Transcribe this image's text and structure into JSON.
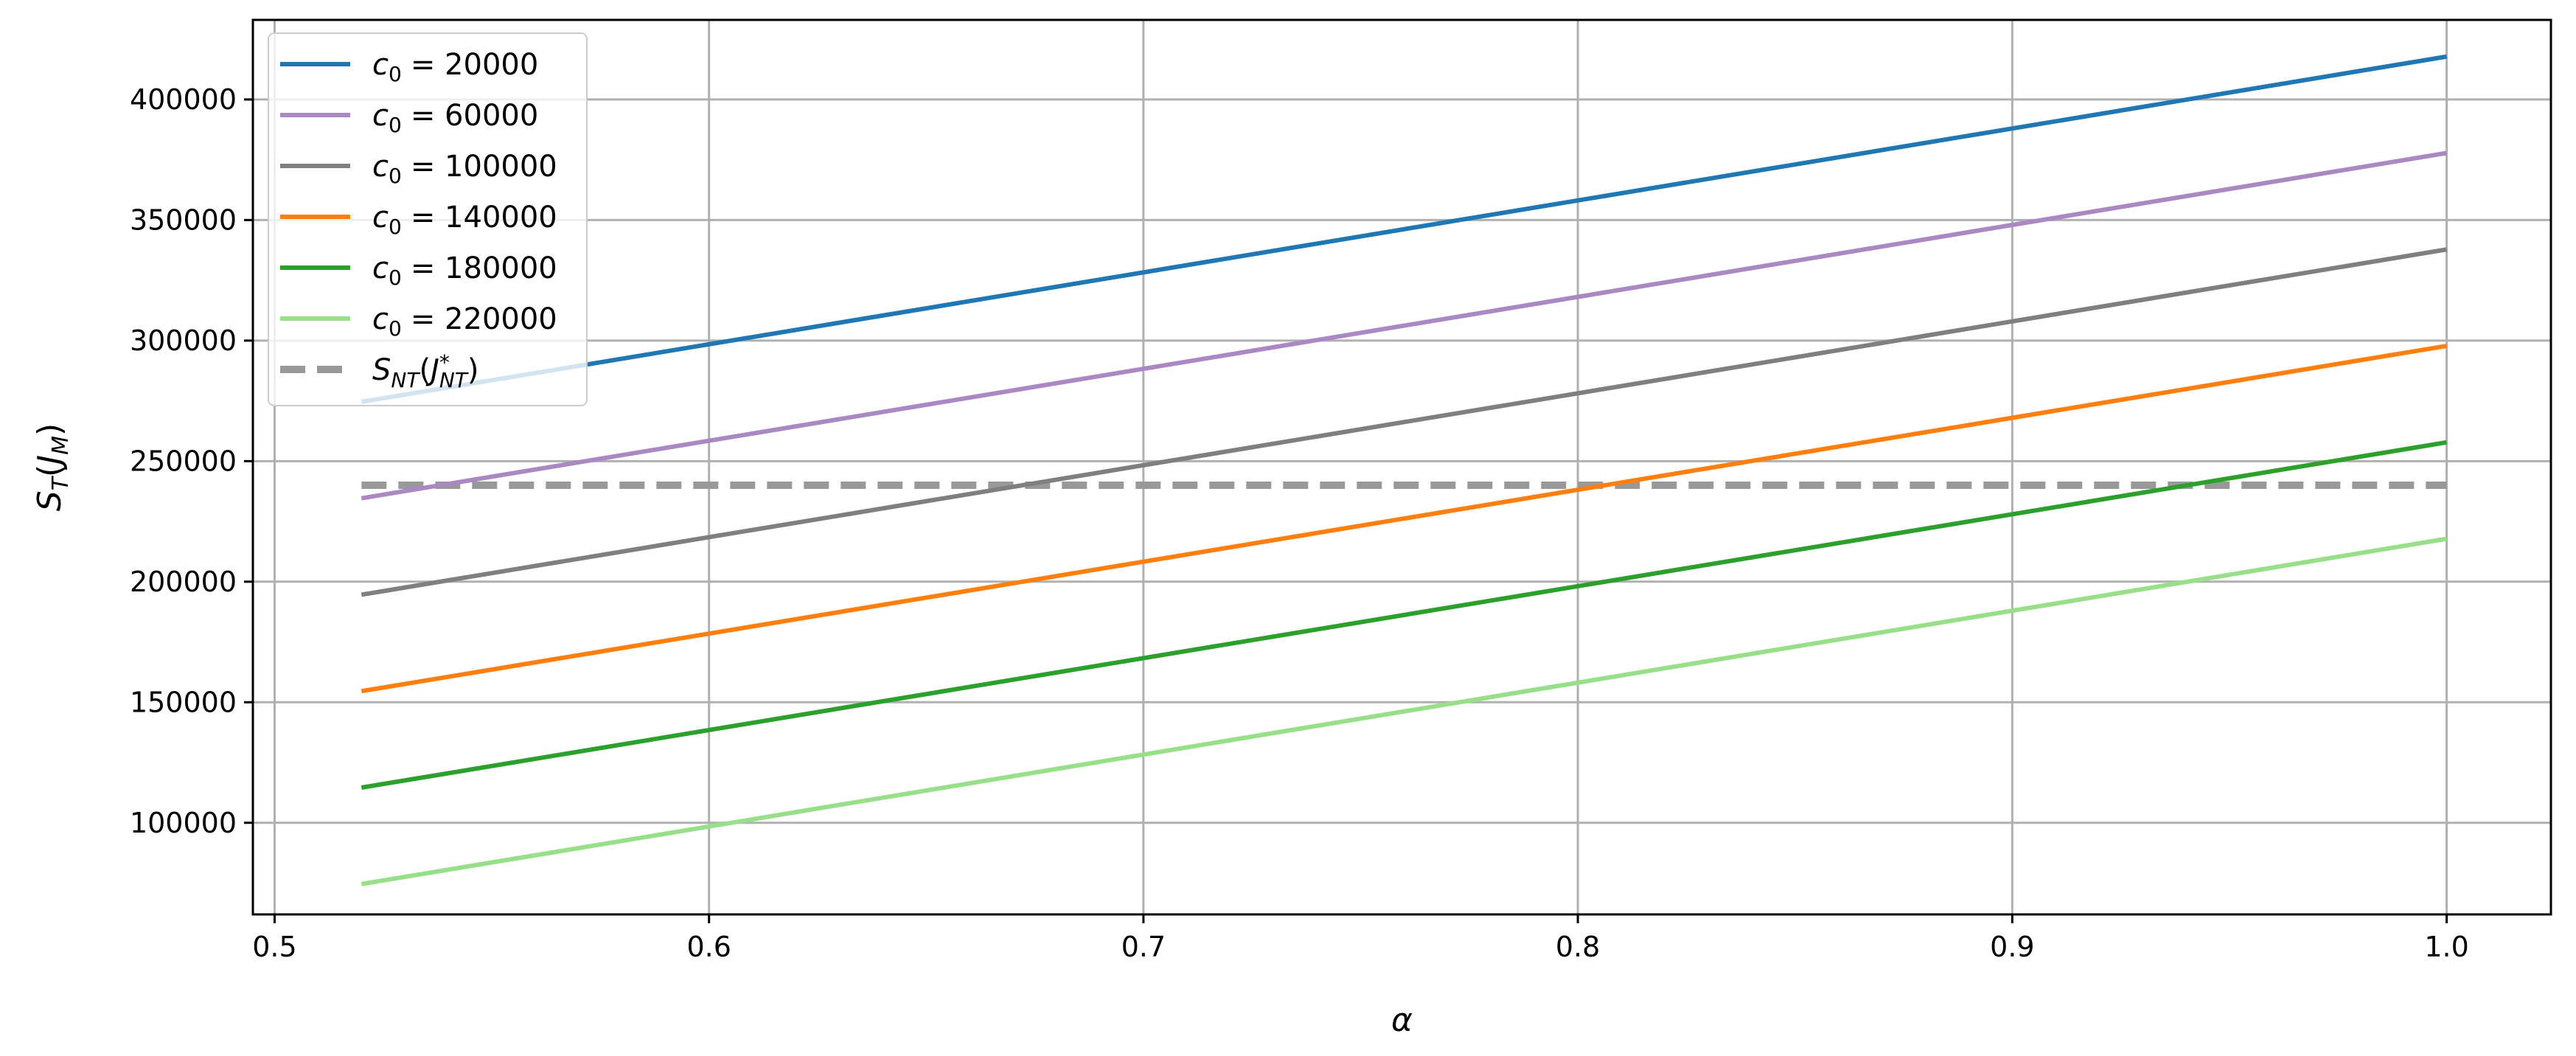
{
  "chart_data": {
    "type": "line",
    "title": "",
    "xlabel": "α",
    "ylabel": "S_T(J_M)",
    "xlim": [
      0.495,
      1.024
    ],
    "ylim": [
      62000,
      433000
    ],
    "xticks": [
      0.5,
      0.6,
      0.7,
      0.8,
      0.9,
      1.0
    ],
    "xtick_labels": [
      "0.5",
      "0.6",
      "0.7",
      "0.8",
      "0.9",
      "1.0"
    ],
    "yticks": [
      100000,
      150000,
      200000,
      250000,
      300000,
      350000,
      400000
    ],
    "ytick_labels": [
      "100000",
      "150000",
      "200000",
      "250000",
      "300000",
      "350000",
      "400000"
    ],
    "grid": true,
    "legend_position": "upper-left",
    "x": [
      0.52,
      1.0
    ],
    "series": [
      {
        "name": "c0 = 20000",
        "legend_var": "c",
        "legend_sub": "0",
        "legend_value": "= 20000",
        "color": "#1f77b4",
        "style": "solid",
        "values": [
          274600,
          417800
        ]
      },
      {
        "name": "c0 = 60000",
        "legend_var": "c",
        "legend_sub": "0",
        "legend_value": "= 60000",
        "color": "#aa88c4",
        "style": "solid",
        "values": [
          234600,
          377800
        ]
      },
      {
        "name": "c0 = 100000",
        "legend_var": "c",
        "legend_sub": "0",
        "legend_value": "= 100000",
        "color": "#7f7f7f",
        "style": "solid",
        "values": [
          194600,
          337800
        ]
      },
      {
        "name": "c0 = 140000",
        "legend_var": "c",
        "legend_sub": "0",
        "legend_value": "= 140000",
        "color": "#ff7f0e",
        "style": "solid",
        "values": [
          154600,
          297800
        ]
      },
      {
        "name": "c0 = 180000",
        "legend_var": "c",
        "legend_sub": "0",
        "legend_value": "= 180000",
        "color": "#2ca02c",
        "style": "solid",
        "values": [
          114600,
          257800
        ]
      },
      {
        "name": "c0 = 220000",
        "legend_var": "c",
        "legend_sub": "0",
        "legend_value": "= 220000",
        "color": "#98df8a",
        "style": "solid",
        "values": [
          74600,
          217800
        ]
      }
    ],
    "reference_line": {
      "name": "S_NT(J*_NT)",
      "color": "#999999",
      "style": "dashed",
      "x": [
        0.52,
        1.0
      ],
      "values": [
        240000,
        240000
      ]
    }
  }
}
